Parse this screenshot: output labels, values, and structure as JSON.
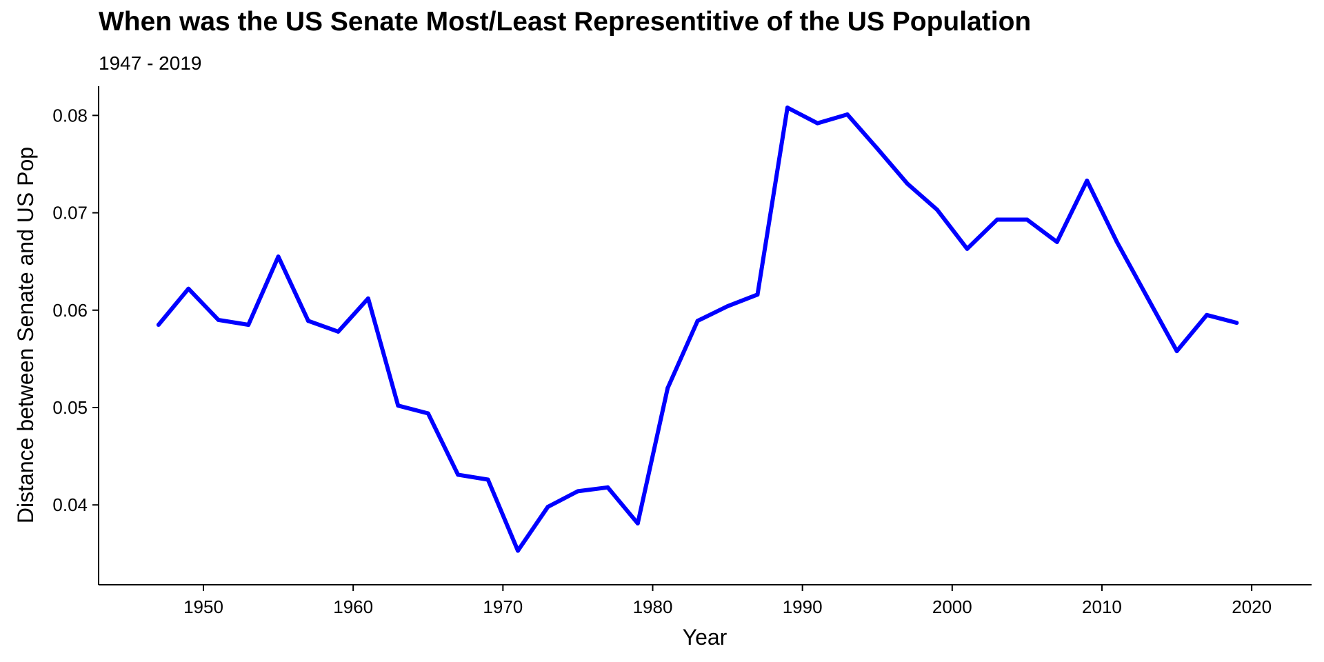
{
  "chart_data": {
    "type": "line",
    "title": "When was the US Senate Most/Least Representitive of the US Population",
    "subtitle": "1947 - 2019",
    "xlabel": "Year",
    "ylabel": "Distance between Senate and US Pop",
    "xlim": [
      1943,
      2024
    ],
    "ylim": [
      0.0318,
      0.083
    ],
    "x_ticks": [
      1950,
      1960,
      1970,
      1980,
      1990,
      2000,
      2010,
      2020
    ],
    "y_ticks": [
      0.04,
      0.05,
      0.06,
      0.07,
      0.08
    ],
    "y_tick_labels": [
      "0.04",
      "0.05",
      "0.06",
      "0.07",
      "0.08"
    ],
    "grid": false,
    "line_color": "#0000ff",
    "x": [
      1947,
      1949,
      1951,
      1953,
      1955,
      1957,
      1959,
      1961,
      1963,
      1965,
      1967,
      1969,
      1971,
      1973,
      1975,
      1977,
      1979,
      1981,
      1983,
      1985,
      1987,
      1989,
      1991,
      1993,
      1995,
      1997,
      1999,
      2001,
      2003,
      2005,
      2007,
      2009,
      2011,
      2013,
      2015,
      2017,
      2019
    ],
    "y": [
      0.0585,
      0.0622,
      0.059,
      0.0585,
      0.0655,
      0.0589,
      0.0578,
      0.0612,
      0.0502,
      0.0494,
      0.0431,
      0.0426,
      0.0353,
      0.0398,
      0.0414,
      0.0418,
      0.0381,
      0.052,
      0.0589,
      0.0604,
      0.0616,
      0.0808,
      0.0792,
      0.0801,
      0.0766,
      0.073,
      0.0703,
      0.0663,
      0.0693,
      0.0693,
      0.067,
      0.0733,
      0.067,
      0.0614,
      0.0558,
      0.0595,
      0.0587
    ]
  }
}
